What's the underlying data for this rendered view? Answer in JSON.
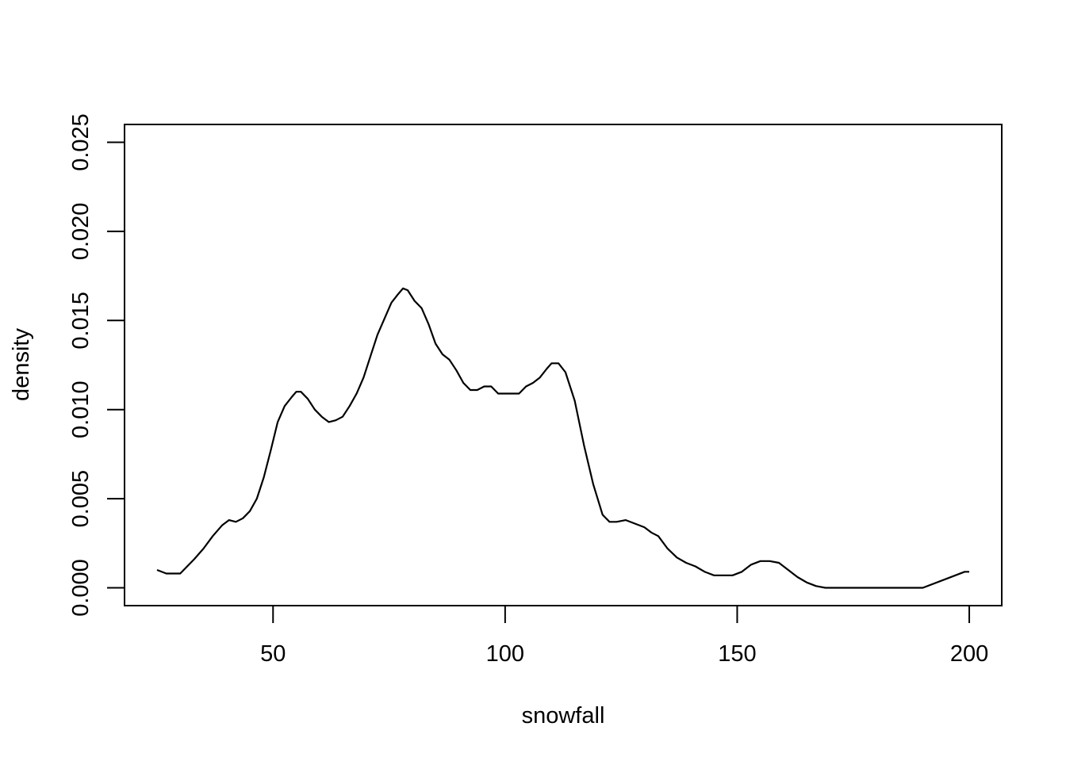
{
  "chart_data": {
    "type": "line",
    "title": "",
    "xlabel": "snowfall",
    "ylabel": "density",
    "xlim": [
      18,
      207
    ],
    "ylim": [
      -0.001,
      0.026
    ],
    "x_ticks": [
      50,
      100,
      150,
      200
    ],
    "x_tick_labels": [
      "50",
      "100",
      "150",
      "200"
    ],
    "y_ticks": [
      0.0,
      0.005,
      0.01,
      0.015,
      0.02,
      0.025
    ],
    "y_tick_labels": [
      "0.000",
      "0.005",
      "0.010",
      "0.015",
      "0.020",
      "0.025"
    ],
    "grid": false,
    "legend": "none",
    "line_color": "#000000",
    "series": [
      {
        "x": [
          25.0,
          27.0,
          30.0,
          31.5,
          33.0,
          35.0,
          37.0,
          39.0,
          40.5,
          42.0,
          43.5,
          45.0,
          46.5,
          48.0,
          49.5,
          51.0,
          52.5,
          54.0,
          55.0,
          56.0,
          57.5,
          59.0,
          60.5,
          62.0,
          63.5,
          65.0,
          66.5,
          68.0,
          69.5,
          71.0,
          72.5,
          74.0,
          75.5,
          77.0,
          78.0,
          79.0,
          80.5,
          82.0,
          83.5,
          85.0,
          86.5,
          88.0,
          89.5,
          91.0,
          92.5,
          94.0,
          95.5,
          97.0,
          98.5,
          100.0,
          101.5,
          103.0,
          104.5,
          106.0,
          107.5,
          109.0,
          110.0,
          111.5,
          113.0,
          115.0,
          117.0,
          119.0,
          121.0,
          122.5,
          124.0,
          126.0,
          128.0,
          130.0,
          131.5,
          133.0,
          135.0,
          137.0,
          139.0,
          141.0,
          143.0,
          145.0,
          147.0,
          149.0,
          151.0,
          153.0,
          155.0,
          157.0,
          159.0,
          161.0,
          163.0,
          165.0,
          167.0,
          169.0,
          171.0,
          175.0,
          180.0,
          185.0,
          190.0,
          195.0,
          199.0,
          200.0
        ],
        "values": [
          0.001,
          0.0008,
          0.0008,
          0.0012,
          0.0016,
          0.0022,
          0.0029,
          0.0035,
          0.0038,
          0.0037,
          0.0039,
          0.0043,
          0.005,
          0.0062,
          0.0077,
          0.0093,
          0.0102,
          0.0107,
          0.011,
          0.011,
          0.0106,
          0.01,
          0.0096,
          0.0093,
          0.0094,
          0.0096,
          0.0102,
          0.0109,
          0.0118,
          0.013,
          0.0142,
          0.0151,
          0.016,
          0.0165,
          0.0168,
          0.0167,
          0.0161,
          0.0157,
          0.0148,
          0.0137,
          0.0131,
          0.0128,
          0.0122,
          0.0115,
          0.0111,
          0.0111,
          0.0113,
          0.0113,
          0.0109,
          0.0109,
          0.0109,
          0.0109,
          0.0113,
          0.0115,
          0.0118,
          0.0123,
          0.0126,
          0.0126,
          0.0121,
          0.0105,
          0.008,
          0.0058,
          0.0041,
          0.0037,
          0.0037,
          0.0038,
          0.0036,
          0.0034,
          0.0031,
          0.0029,
          0.0022,
          0.0017,
          0.0014,
          0.0012,
          0.0009,
          0.0007,
          0.0007,
          0.0007,
          0.0009,
          0.0013,
          0.0015,
          0.0015,
          0.0014,
          0.001,
          0.0006,
          0.0003,
          0.0001,
          0.0,
          0.0,
          0.0,
          0.0,
          0.0,
          0.0,
          0.0005,
          0.0009,
          0.0009
        ]
      }
    ]
  }
}
